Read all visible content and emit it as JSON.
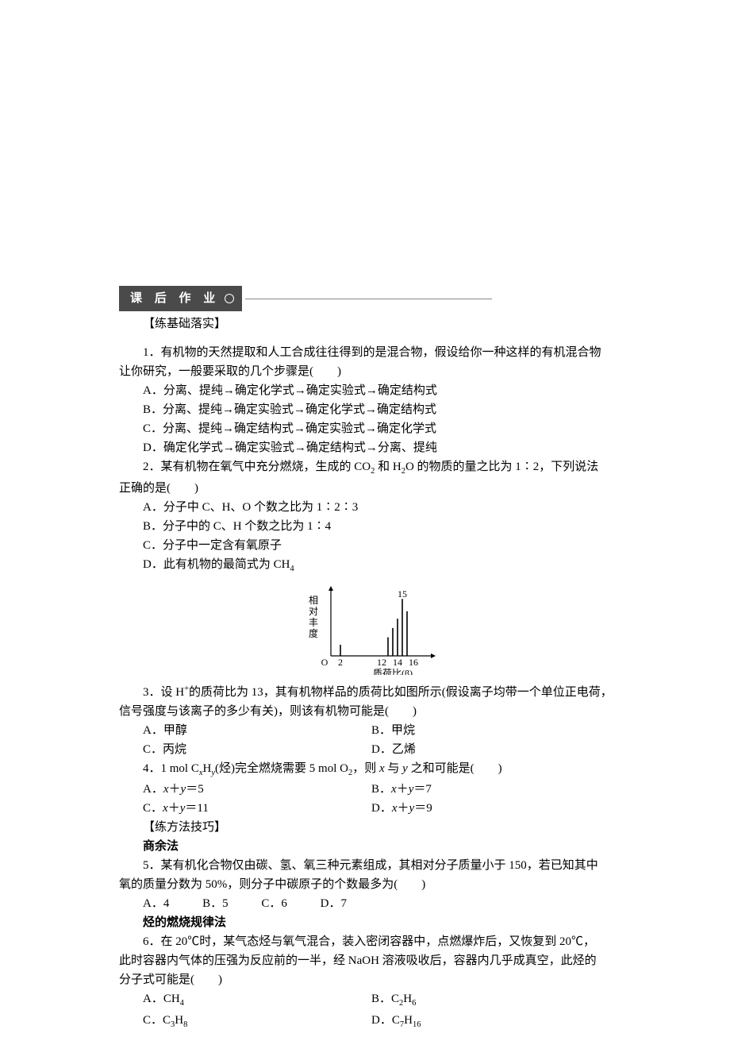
{
  "header": {
    "title": "课 后 作 业"
  },
  "section1": {
    "label": "【练基础落实】"
  },
  "q1": {
    "stem_a": "1．有机物的天然提取和人工合成往往得到的是混合物，假设给你一种这样的有机混合物",
    "stem_b": "让你研究，一般要采取的几个步骤是(　　)",
    "A": "A．分离、提纯→确定化学式→确定实验式→确定结构式",
    "B": "B．分离、提纯→确定实验式→确定化学式→确定结构式",
    "C": "C．分离、提纯→确定结构式→确定实验式→确定化学式",
    "D": "D．确定化学式→确定实验式→确定结构式→分离、提纯"
  },
  "q2": {
    "stem_a": "2．某有机物在氧气中充分燃烧，生成的 CO",
    "stem_b": " 和 H",
    "stem_c": "O 的物质的量之比为 1∶2，下列说法",
    "stem_d": "正确的是(　　)",
    "A": "A．分子中 C、H、O 个数之比为 1∶2∶3",
    "B": "B．分子中的 C、H 个数之比为 1∶4",
    "C": "C．分子中一定含有氧原子",
    "D_a": "D．此有机物的最简式为 CH"
  },
  "figure": {
    "ylabel": "相对丰度",
    "xlabel": "质荷比(β)",
    "peak_labels": {
      "p2": "2",
      "p12": "12",
      "p14": "14",
      "p15": "15",
      "p16": "16"
    },
    "origin": "O",
    "xrange": [
      0,
      20
    ],
    "yrange": [
      0,
      100
    ],
    "peaks": [
      {
        "x": 2,
        "h": 18
      },
      {
        "x": 12,
        "h": 30
      },
      {
        "x": 13,
        "h": 45
      },
      {
        "x": 14,
        "h": 60
      },
      {
        "x": 15,
        "h": 92
      },
      {
        "x": 16,
        "h": 72
      }
    ],
    "axis_color": "#000",
    "line_width": 1.2,
    "font_size": 12
  },
  "q3": {
    "stem_a": "3．设 H",
    "stem_b": "的质荷比为 13，其有机物样品的质荷比如图所示(假设离子均带一个单位正电荷，",
    "stem_c": "信号强度与该离子的多少有关)，则该有机物可能是(　　)",
    "A": "A．甲醇",
    "B": "B．甲烷",
    "C": "C．丙烷",
    "D": "D．乙烯"
  },
  "q4": {
    "stem_a": "4．1 mol C",
    "stem_b": "H",
    "stem_c": "(烃)完全燃烧需要 5 mol O",
    "stem_d": "，则 ",
    "stem_e": " 与 ",
    "stem_f": " 之和可能是(　　)",
    "A_a": "A．",
    "A_b": "＝5",
    "B_a": "B．",
    "B_b": "＝7",
    "C_a": "C．",
    "C_b": "＝11",
    "D_a": "D．",
    "D_b": "＝9"
  },
  "section2": {
    "label": "【练方法技巧】",
    "sub1": "商余法"
  },
  "q5": {
    "stem_a": "5．某有机化合物仅由碳、氢、氧三种元素组成，其相对分子质量小于 150，若已知其中",
    "stem_b": "氧的质量分数为 50%，则分子中碳原子的个数最多为(　　)",
    "A": "A．4",
    "B": "B．5",
    "C": "C．6",
    "D": "D．7"
  },
  "section3": {
    "sub": "烃的燃烧规律法"
  },
  "q6": {
    "stem_a": "6．在 20℃时，某气态烃与氧气混合，装入密闭容器中，点燃爆炸后，又恢复到 20℃，",
    "stem_b": "此时容器内气体的压强为反应前的一半，经 NaOH 溶液吸收后，容器内几乎成真空，此烃的",
    "stem_c": "分子式可能是(　　)",
    "A_a": "A．CH",
    "B_a": "B．C",
    "B_b": "H",
    "C_a": "C．C",
    "C_b": "H",
    "D_a": "D．C",
    "D_b": "H"
  }
}
